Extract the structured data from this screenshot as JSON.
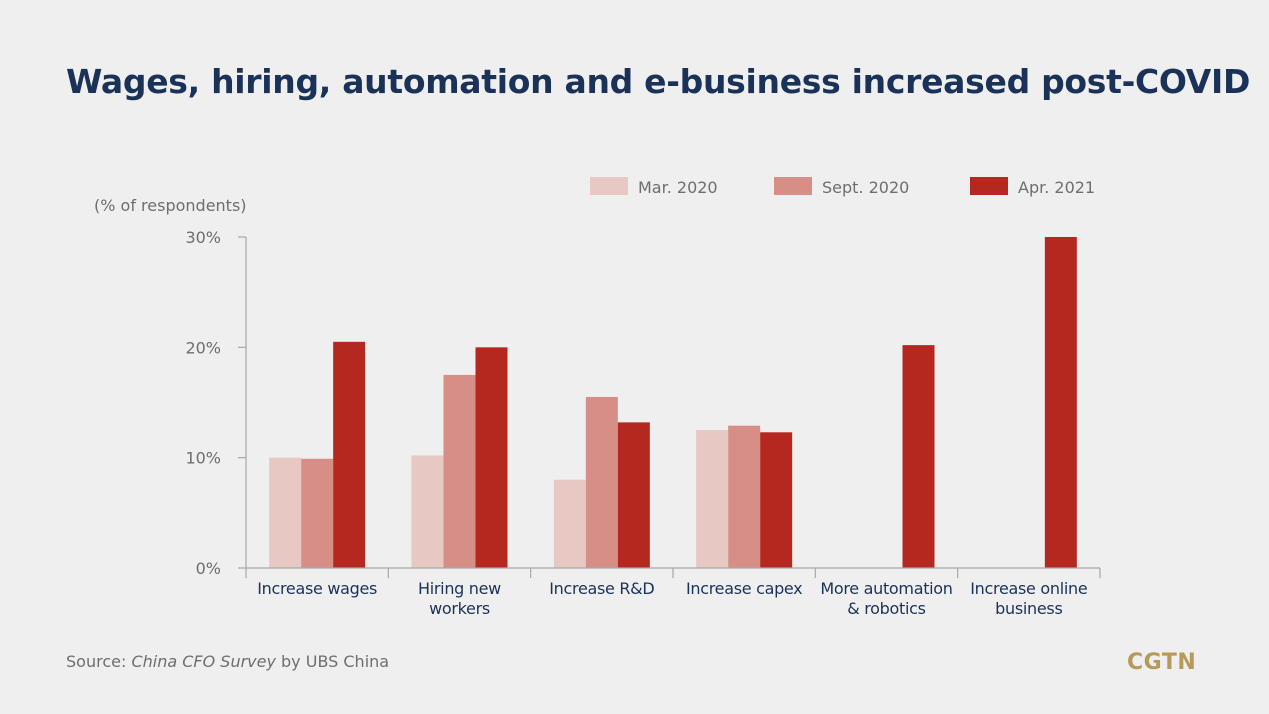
{
  "title": "Wages, hiring, automation and e-business increased post-COVID",
  "source": {
    "prefix": "Source: ",
    "publication": "China CFO Survey",
    "suffix": " by UBS China"
  },
  "logo": "CGTN",
  "colors": {
    "background": "#efefef",
    "title": "#1b3258",
    "category_label": "#1b3258",
    "axis_text": "#6e6e6e",
    "axis_line": "#a8a8a8",
    "series": [
      "#e8c8c3",
      "#d68e86",
      "#b5281f"
    ]
  },
  "chart_data": {
    "type": "bar",
    "title": "Wages, hiring, automation and e-business increased post-COVID",
    "ylabel": "(% of respondents)",
    "xlabel": "",
    "ylim": [
      0,
      30
    ],
    "y_ticks": [
      0,
      10,
      20,
      30
    ],
    "y_tick_labels": [
      "0%",
      "10%",
      "20%",
      "30%"
    ],
    "grid": false,
    "legend_position": "top-right",
    "categories": [
      [
        "Increase wages"
      ],
      [
        "Hiring new",
        "workers"
      ],
      [
        "Increase R&D"
      ],
      [
        "Increase capex"
      ],
      [
        "More automation",
        "& robotics"
      ],
      [
        "Increase online",
        "business"
      ]
    ],
    "series": [
      {
        "name": "Mar. 2020",
        "values": [
          10,
          10.2,
          8,
          12.5,
          null,
          null
        ]
      },
      {
        "name": "Sept. 2020",
        "values": [
          9.9,
          17.5,
          15.5,
          12.9,
          null,
          null
        ]
      },
      {
        "name": "Apr. 2021",
        "values": [
          20.5,
          20,
          13.2,
          12.3,
          20.2,
          30
        ]
      }
    ]
  }
}
